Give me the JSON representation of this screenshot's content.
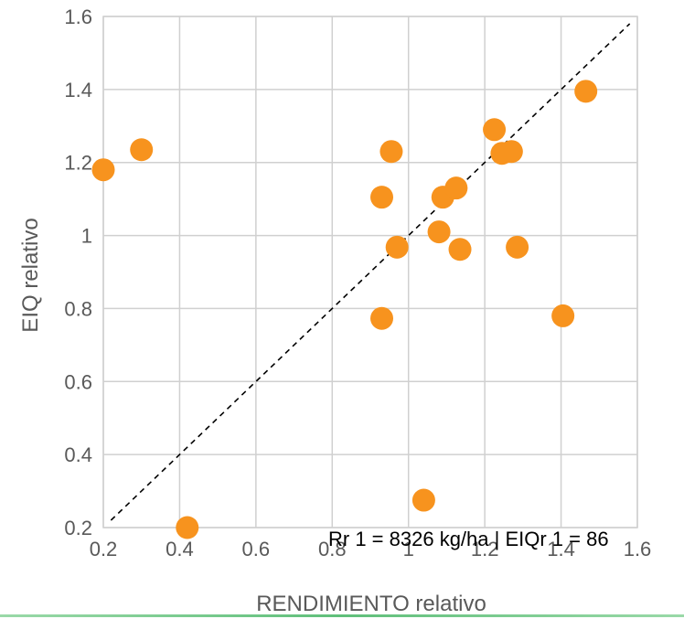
{
  "chart_data": {
    "type": "scatter",
    "title": "",
    "xlabel": "RENDIMIENTO relativo",
    "ylabel": "EIQ relativo",
    "xlim": [
      0.2,
      1.6
    ],
    "ylim": [
      0.2,
      1.6
    ],
    "x_ticks": [
      "0.2",
      "0.4",
      "0.6",
      "0.8",
      "1",
      "1.2",
      "1.4",
      "1.6"
    ],
    "y_ticks": [
      "0.2",
      "0.4",
      "0.6",
      "0.8",
      "1",
      "1.2",
      "1.4",
      "1.6"
    ],
    "grid": true,
    "legend": "none",
    "point_color": "#f7931e",
    "reference_line": {
      "from": [
        0.22,
        0.22
      ],
      "to": [
        1.58,
        1.58
      ],
      "style": "dashed",
      "color": "#000000"
    },
    "annotation": "Rr 1 = 8326 kg/ha | EIQr 1 = 86",
    "series": [
      {
        "points": [
          {
            "x": 0.2,
            "y": 1.18
          },
          {
            "x": 0.3,
            "y": 1.235
          },
          {
            "x": 0.42,
            "y": 0.2
          },
          {
            "x": 0.93,
            "y": 1.105
          },
          {
            "x": 0.93,
            "y": 0.773
          },
          {
            "x": 0.955,
            "y": 1.23
          },
          {
            "x": 0.97,
            "y": 0.968
          },
          {
            "x": 1.04,
            "y": 0.275
          },
          {
            "x": 1.08,
            "y": 1.01
          },
          {
            "x": 1.09,
            "y": 1.105
          },
          {
            "x": 1.125,
            "y": 1.13
          },
          {
            "x": 1.135,
            "y": 0.962
          },
          {
            "x": 1.225,
            "y": 1.29
          },
          {
            "x": 1.245,
            "y": 1.225
          },
          {
            "x": 1.27,
            "y": 1.23
          },
          {
            "x": 1.285,
            "y": 0.968
          },
          {
            "x": 1.405,
            "y": 0.78
          },
          {
            "x": 1.465,
            "y": 1.395
          }
        ]
      }
    ]
  }
}
